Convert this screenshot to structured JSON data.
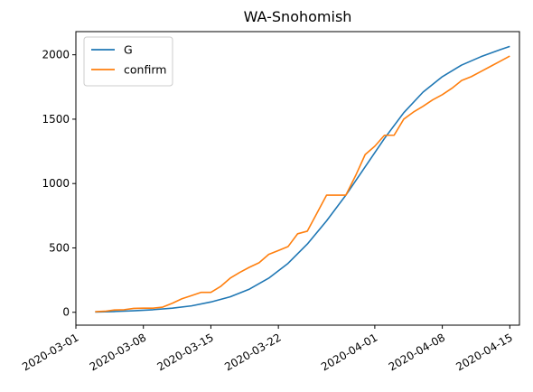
{
  "chart_data": {
    "type": "line",
    "title": "WA-Snohomish",
    "xlabel": "",
    "ylabel": "",
    "x_axis_type": "date",
    "xlim": [
      "2020-03-01",
      "2020-04-16"
    ],
    "ylim": [
      -100,
      2180
    ],
    "x_ticks": [
      "2020-03-01",
      "2020-03-08",
      "2020-03-15",
      "2020-03-22",
      "2020-04-01",
      "2020-04-08",
      "2020-04-15"
    ],
    "y_ticks": [
      0,
      500,
      1000,
      1500,
      2000
    ],
    "legend_position": "upper-left",
    "grid": false,
    "colors": {
      "G": "#1f77b4",
      "confirm": "#ff7f0e"
    },
    "series": [
      {
        "name": "G",
        "x": [
          "2020-03-03",
          "2020-03-05",
          "2020-03-07",
          "2020-03-09",
          "2020-03-11",
          "2020-03-13",
          "2020-03-15",
          "2020-03-17",
          "2020-03-19",
          "2020-03-21",
          "2020-03-23",
          "2020-03-25",
          "2020-03-27",
          "2020-03-29",
          "2020-03-31",
          "2020-04-02",
          "2020-04-04",
          "2020-04-06",
          "2020-04-08",
          "2020-04-10",
          "2020-04-12",
          "2020-04-14",
          "2020-04-15"
        ],
        "values": [
          2,
          6,
          12,
          20,
          32,
          50,
          80,
          120,
          180,
          265,
          380,
          530,
          710,
          910,
          1130,
          1350,
          1550,
          1710,
          1830,
          1920,
          1985,
          2040,
          2065
        ]
      },
      {
        "name": "confirm",
        "x": [
          "2020-03-03",
          "2020-03-04",
          "2020-03-05",
          "2020-03-06",
          "2020-03-07",
          "2020-03-08",
          "2020-03-09",
          "2020-03-10",
          "2020-03-11",
          "2020-03-12",
          "2020-03-13",
          "2020-03-14",
          "2020-03-15",
          "2020-03-16",
          "2020-03-17",
          "2020-03-18",
          "2020-03-19",
          "2020-03-20",
          "2020-03-21",
          "2020-03-22",
          "2020-03-23",
          "2020-03-24",
          "2020-03-25",
          "2020-03-26",
          "2020-03-27",
          "2020-03-28",
          "2020-03-29",
          "2020-03-30",
          "2020-03-31",
          "2020-04-01",
          "2020-04-02",
          "2020-04-03",
          "2020-04-04",
          "2020-04-05",
          "2020-04-06",
          "2020-04-07",
          "2020-04-08",
          "2020-04-09",
          "2020-04-10",
          "2020-04-11",
          "2020-04-12",
          "2020-04-13",
          "2020-04-14",
          "2020-04-15"
        ],
        "values": [
          5,
          8,
          18,
          20,
          30,
          32,
          32,
          40,
          70,
          105,
          130,
          155,
          155,
          200,
          265,
          310,
          350,
          385,
          450,
          480,
          510,
          610,
          630,
          770,
          910,
          910,
          910,
          1060,
          1225,
          1290,
          1375,
          1375,
          1500,
          1555,
          1600,
          1650,
          1690,
          1740,
          1800,
          1830,
          1870,
          1910,
          1950,
          1990
        ]
      }
    ]
  }
}
